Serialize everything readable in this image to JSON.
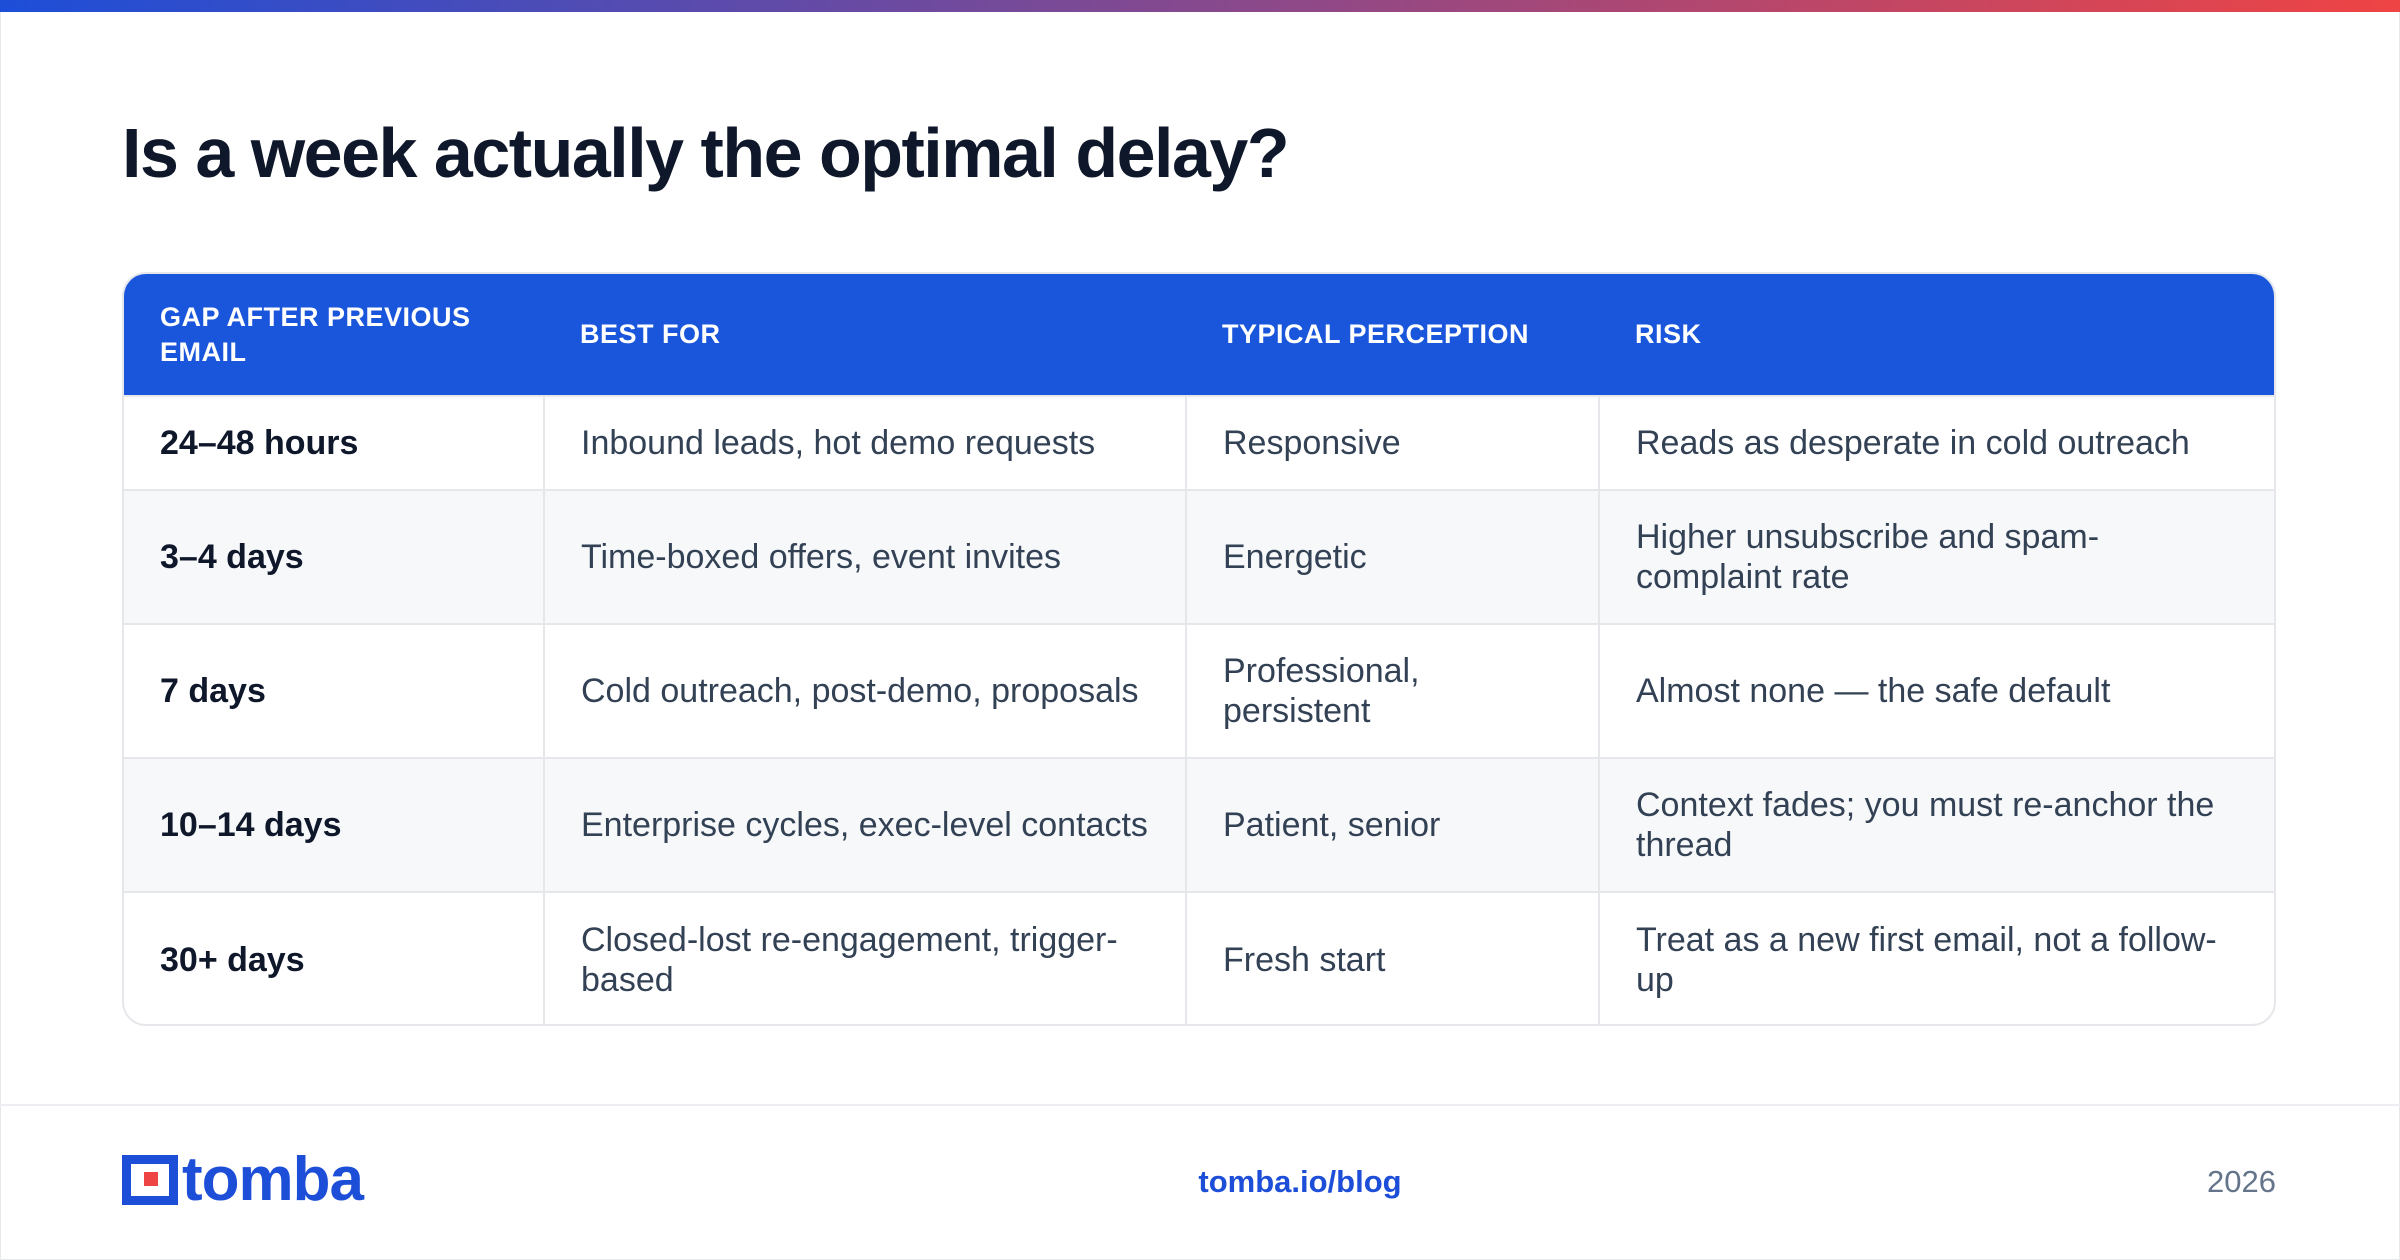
{
  "page": {
    "title": "Is a week actually the optimal delay?"
  },
  "colors": {
    "accent_blue": "#1a56db",
    "gradient_start": "#1d4ed8",
    "gradient_end": "#ef4444",
    "row_alt_bg": "#f7f8fa",
    "title_color": "#0f172a",
    "muted_text": "#64748b"
  },
  "table": {
    "headers": [
      "GAP AFTER PREVIOUS EMAIL",
      "BEST FOR",
      "TYPICAL PERCEPTION",
      "RISK"
    ],
    "rows": [
      [
        "24–48 hours",
        "Inbound leads, hot demo requests",
        "Responsive",
        "Reads as desperate in cold outreach"
      ],
      [
        "3–4 days",
        "Time-boxed offers, event invites",
        "Energetic",
        "Higher unsubscribe and spam-complaint rate"
      ],
      [
        "7 days",
        "Cold outreach, post-demo, proposals",
        "Professional, persistent",
        "Almost none — the safe default"
      ],
      [
        "10–14 days",
        "Enterprise cycles, exec-level contacts",
        "Patient, senior",
        "Context fades; you must re-anchor the thread"
      ],
      [
        "30+ days",
        "Closed-lost re-engagement, trigger-based",
        "Fresh start",
        "Treat as a new first email, not a follow-up"
      ]
    ]
  },
  "footer": {
    "logo_text": "tomba",
    "logo_icon": "tomba-logo-icon",
    "link": "tomba.io/blog",
    "year": "2026"
  }
}
